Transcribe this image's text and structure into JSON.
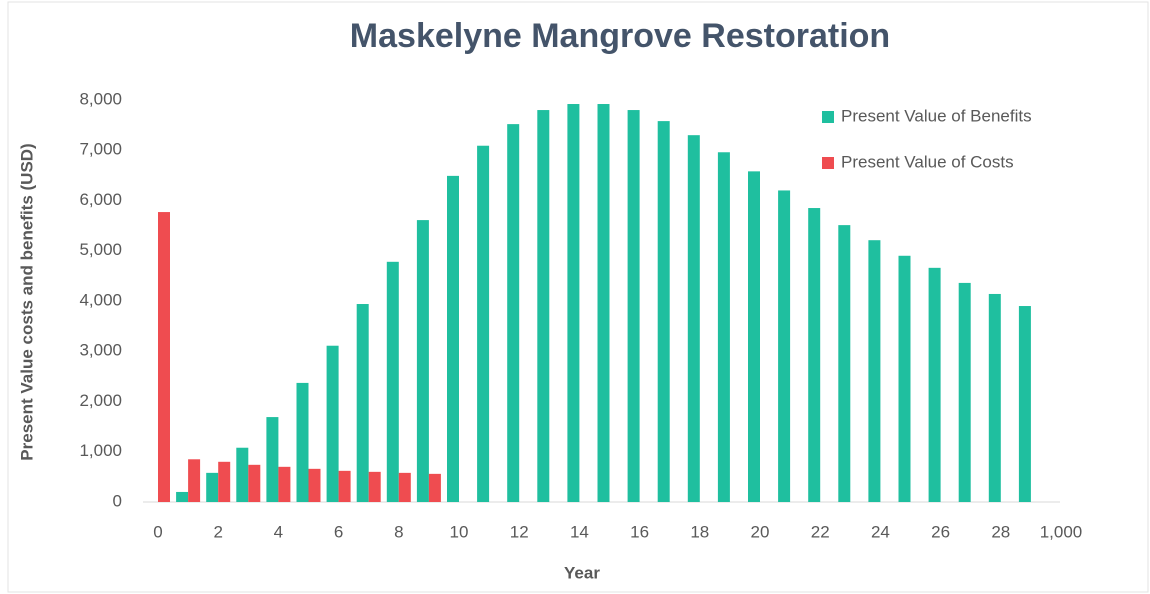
{
  "chart_data": {
    "type": "bar",
    "title": "Maskelyne Mangrove Restoration",
    "x_label": "Year",
    "y_label": "Present Value costs and benefits (USD)",
    "categories": [
      "0",
      null,
      "2",
      null,
      "4",
      null,
      "6",
      null,
      "8",
      null,
      "10",
      null,
      "12",
      null,
      "14",
      null,
      "16",
      null,
      "18",
      null,
      "20",
      null,
      "22",
      null,
      "24",
      null,
      "26",
      null,
      "28",
      null,
      "1,000"
    ],
    "series": [
      {
        "name": "Present Value of Benefits",
        "color": "#1fbf9f",
        "values": [
          null,
          200,
          580,
          1080,
          1690,
          2370,
          3110,
          3940,
          4780,
          5610,
          6490,
          7090,
          7520,
          7800,
          7920,
          7920,
          7800,
          7580,
          7300,
          6960,
          6580,
          6200,
          5850,
          5510,
          5210,
          4900,
          4660,
          4360,
          4140,
          3900,
          null
        ]
      },
      {
        "name": "Present Value of Costs",
        "color": "#ef4c50",
        "values": [
          5770,
          850,
          800,
          740,
          700,
          660,
          620,
          600,
          580,
          560,
          null,
          null,
          null,
          null,
          null,
          null,
          null,
          null,
          null,
          null,
          null,
          null,
          null,
          null,
          null,
          null,
          null,
          null,
          null,
          null,
          null
        ]
      }
    ],
    "ylim": [
      0,
      8000
    ],
    "yticks": [
      0,
      {
        "value": 1000,
        "label": "1,000"
      },
      {
        "value": 2000,
        "label": "2,000"
      },
      {
        "value": 3000,
        "label": "3,000"
      },
      {
        "value": 4000,
        "label": "4,000"
      },
      {
        "value": 5000,
        "label": "5,000"
      },
      {
        "value": 6000,
        "label": "6,000"
      },
      {
        "value": 7000,
        "label": "7,000"
      },
      {
        "value": 8000,
        "label": "8,000"
      }
    ],
    "grid": false,
    "legend": "top-right"
  }
}
